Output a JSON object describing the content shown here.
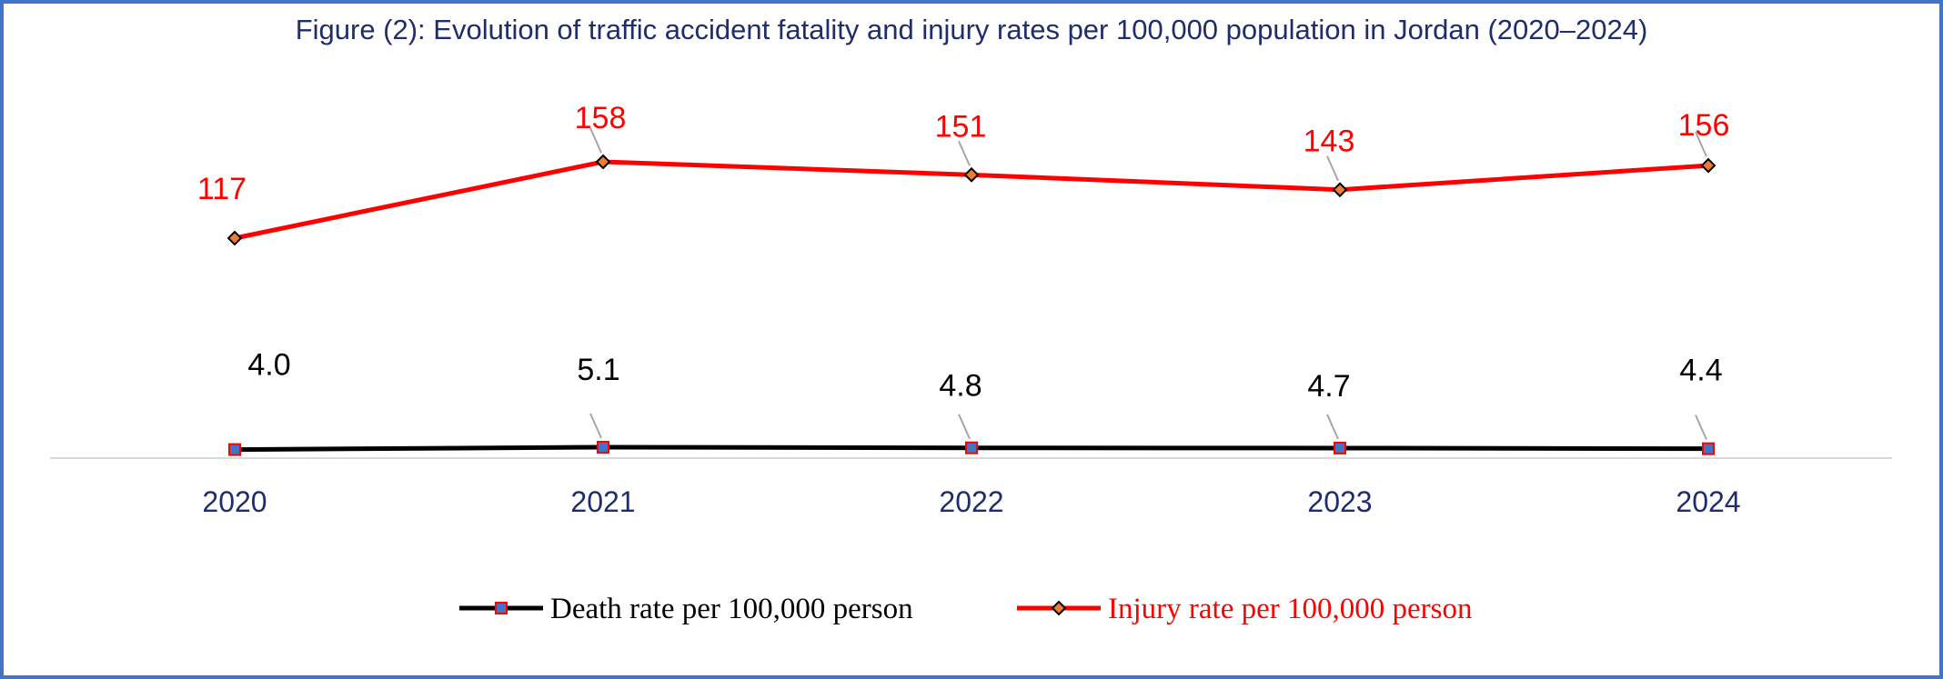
{
  "chart_data": {
    "type": "line",
    "title": "Figure (2): Evolution of traffic accident fatality and injury rates per 100,000 population in Jordan (2020–2024)",
    "categories": [
      "2020",
      "2021",
      "2022",
      "2023",
      "2024"
    ],
    "series": [
      {
        "name": "Death rate per 100,000 person",
        "values": [
          4.0,
          5.1,
          4.8,
          4.7,
          4.4
        ],
        "labels": [
          "4.0",
          "5.1",
          "4.8",
          "4.7",
          "4.4"
        ],
        "line_color": "#000000",
        "marker": "square",
        "marker_fill": "#4472C4",
        "marker_stroke": "#FF0000",
        "label_color": "#000000",
        "legend_text_color": "#000000"
      },
      {
        "name": "Injury rate per 100,000 person",
        "values": [
          117,
          158,
          151,
          143,
          156
        ],
        "labels": [
          "117",
          "158",
          "151",
          "143",
          "156"
        ],
        "line_color": "#FF0000",
        "marker": "diamond",
        "marker_fill": "#ED7D31",
        "marker_stroke": "#000000",
        "label_color": "#FF0000",
        "legend_text_color": "#FF0000"
      }
    ],
    "xlabel": "",
    "ylabel": "",
    "y_axis_visible": false,
    "grid": false,
    "legend_position": "bottom"
  },
  "colors": {
    "title": "#1F2D6B",
    "tick_labels": "#1F2D6B",
    "axis_line": "#D9D9D9",
    "frame_border": "#4472C4",
    "leader_line": "#A6A6A6"
  }
}
